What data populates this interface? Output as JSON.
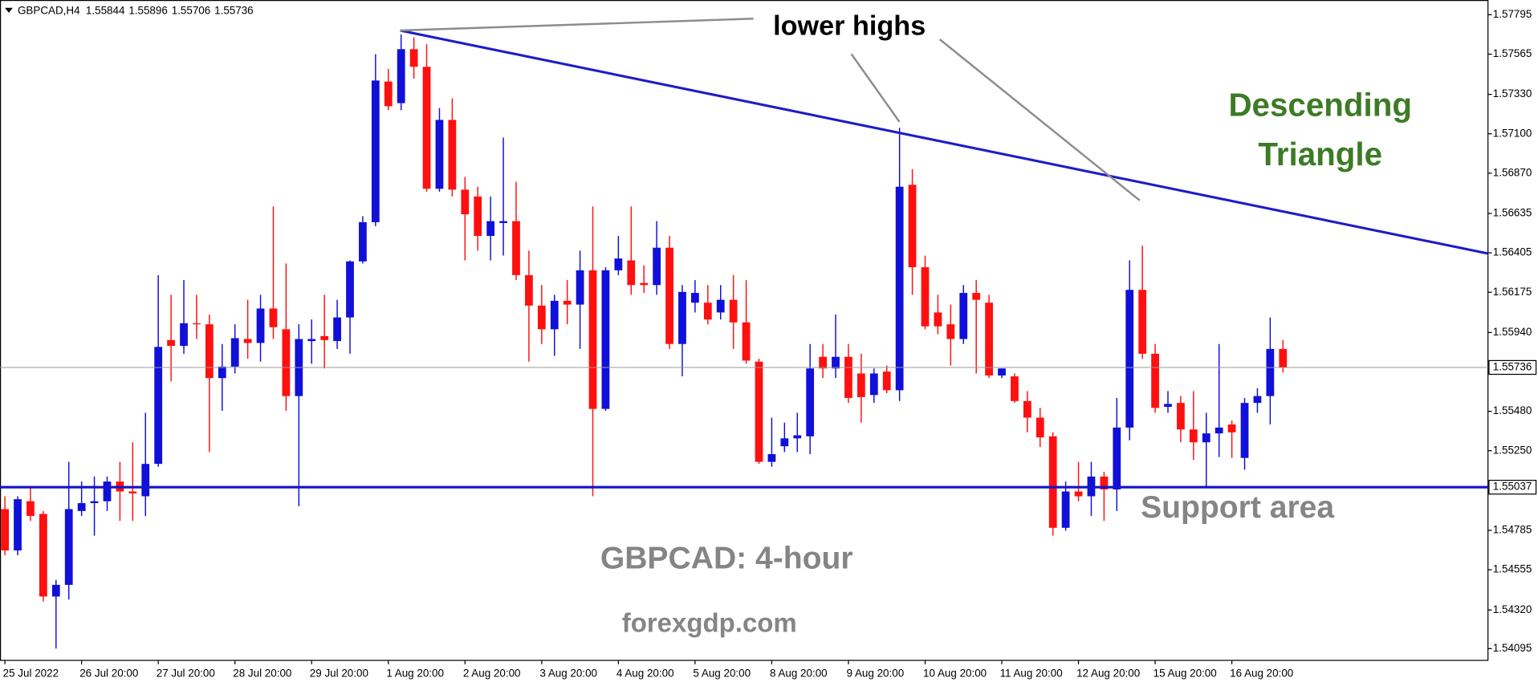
{
  "chart_data": {
    "type": "candlestick",
    "symbol": "GBPCAD,H4",
    "annotations": [
      "lower highs",
      "Descending Triangle",
      "Support area",
      "GBPCAD: 4-hour",
      "forexgdp.com"
    ],
    "up_color": "#1010d8",
    "down_color": "#ff1010",
    "support_level": 1.55037,
    "support_color": "#1414c8",
    "grid": false,
    "ylim": [
      1.54026,
      1.57881
    ],
    "yticks": [
      1.57795,
      1.57565,
      {
        "value": 1.5733,
        "label": "1.57330"
      },
      {
        "value": 1.571,
        "label": "1.57100"
      },
      {
        "value": 1.5687,
        "label": "1.56870"
      },
      1.56635,
      1.56405,
      1.56175,
      {
        "value": 1.5594,
        "label": "1.55940"
      },
      {
        "value": 1.5571,
        "label": "1.55710"
      },
      {
        "value": 1.5548,
        "label": "1.55480"
      },
      {
        "value": 1.5525,
        "label": "1.55250"
      },
      1.54785,
      1.54555,
      {
        "value": 1.5432,
        "label": "1.54320"
      },
      1.54095
    ],
    "categories": [
      "25 Jul 2022",
      null,
      null,
      null,
      null,
      null,
      "26 Jul 20:00",
      null,
      null,
      null,
      null,
      null,
      "27 Jul 20:00",
      null,
      null,
      null,
      null,
      null,
      "28 Jul 20:00",
      null,
      null,
      null,
      null,
      null,
      "29 Jul 20:00",
      null,
      null,
      null,
      null,
      null,
      "1 Aug 20:00",
      null,
      null,
      null,
      null,
      null,
      "2 Aug 20:00",
      null,
      null,
      null,
      null,
      null,
      "3 Aug 20:00",
      null,
      null,
      null,
      null,
      null,
      "4 Aug 20:00",
      null,
      null,
      null,
      null,
      null,
      "5 Aug 20:00",
      null,
      null,
      null,
      null,
      null,
      "8 Aug 20:00",
      null,
      null,
      null,
      null,
      null,
      "9 Aug 20:00",
      null,
      null,
      null,
      null,
      null,
      "10 Aug 20:00",
      null,
      null,
      null,
      null,
      null,
      "11 Aug 20:00",
      null,
      null,
      null,
      null,
      null,
      "12 Aug 20:00",
      null,
      null,
      null,
      null,
      null,
      "15 Aug 20:00",
      null,
      null,
      null,
      null,
      null,
      "16 Aug 20:00",
      null,
      null,
      null,
      null
    ],
    "open": [
      1.54909,
      1.54668,
      1.54955,
      1.54881,
      1.54399,
      1.54467,
      1.54898,
      1.54944,
      1.54955,
      1.5507,
      1.55012,
      1.54984,
      1.55173,
      1.55896,
      1.55862,
      1.55994,
      1.55988,
      1.55674,
      1.55741,
      1.55902,
      1.55879,
      1.5608,
      1.55959,
      1.55569,
      1.5589,
      1.55919,
      1.5589,
      1.56028,
      1.56355,
      1.56584,
      1.57405,
      1.57279,
      1.57594,
      1.57491,
      1.56779,
      1.57181,
      1.56774,
      1.56734,
      1.56504,
      1.56579,
      1.5659,
      1.56275,
      1.56097,
      1.55959,
      1.56125,
      1.56103,
      1.56303,
      1.55494,
      1.56303,
      1.56361,
      1.56229,
      1.56217,
      1.56435,
      1.55873,
      1.56114,
      1.56114,
      1.56057,
      1.56131,
      1.55999,
      1.5577,
      1.55185,
      1.55276,
      1.55322,
      1.55334,
      1.55798,
      1.5573,
      1.55798,
      1.55701,
      1.55575,
      1.55712,
      1.55603,
      1.56802,
      1.56321,
      1.56057,
      1.55988,
      1.55902,
      1.56171,
      1.56114,
      1.55689,
      1.55684,
      1.5554,
      1.55443,
      1.55334,
      1.548,
      1.55012,
      1.54984,
      1.55099,
      1.55024,
      1.55385,
      1.56189,
      1.55816,
      1.55506,
      1.55529,
      1.55374,
      1.55299,
      1.55351,
      1.55403,
      1.55208,
      1.55529,
      1.55569,
      1.55844
    ],
    "high": [
      1.54984,
      1.54984,
      1.55041,
      1.54898,
      1.54496,
      1.55185,
      1.5507,
      1.55099,
      1.55099,
      1.55185,
      1.55299,
      1.55471,
      1.56275,
      1.5616,
      1.56246,
      1.5616,
      1.56045,
      1.55873,
      1.55988,
      1.56131,
      1.5616,
      1.56676,
      1.56343,
      1.55988,
      1.56016,
      1.5616,
      1.56131,
      1.56361,
      1.56619,
      1.57565,
      1.57479,
      1.5768,
      1.57663,
      1.57623,
      1.5725,
      1.57307,
      1.56848,
      1.56791,
      1.56734,
      1.57078,
      1.5682,
      1.56418,
      1.56217,
      1.5616,
      1.56246,
      1.56418,
      1.56676,
      1.56321,
      1.56504,
      1.56676,
      1.56332,
      1.5659,
      1.56504,
      1.56217,
      1.56246,
      1.56217,
      1.56217,
      1.56275,
      1.56246,
      1.55787,
      1.55443,
      1.55414,
      1.55471,
      1.55873,
      1.55873,
      1.56045,
      1.55873,
      1.55816,
      1.5573,
      1.55747,
      1.57135,
      1.56894,
      1.56389,
      1.5616,
      1.56103,
      1.56217,
      1.56246,
      1.5616,
      1.5573,
      1.55701,
      1.55598,
      1.555,
      1.55357,
      1.5507,
      1.55185,
      1.55185,
      1.55127,
      1.55558,
      1.56361,
      1.56447,
      1.55873,
      1.55598,
      1.55569,
      1.55598,
      1.55471,
      1.55873,
      1.55426,
      1.55558,
      1.55615,
      1.56028,
      1.55896
    ],
    "low": [
      1.5464,
      1.5464,
      1.5484,
      1.5437,
      1.54095,
      1.54381,
      1.54869,
      1.54754,
      1.54898,
      1.5484,
      1.5484,
      1.54869,
      1.55156,
      1.55655,
      1.55816,
      1.55902,
      1.55242,
      1.55483,
      1.55701,
      1.55787,
      1.5577,
      1.55902,
      1.55483,
      1.54926,
      1.55758,
      1.5573,
      1.55844,
      1.55816,
      1.56343,
      1.56561,
      1.57238,
      1.57238,
      1.57422,
      1.56762,
      1.56762,
      1.56734,
      1.56361,
      1.56418,
      1.56361,
      1.56389,
      1.56246,
      1.5577,
      1.55873,
      1.55804,
      1.55988,
      1.55844,
      1.54984,
      1.55483,
      1.56275,
      1.5616,
      1.56171,
      1.5616,
      1.55844,
      1.55684,
      1.56057,
      1.55988,
      1.56016,
      1.55844,
      1.55758,
      1.55173,
      1.55156,
      1.55242,
      1.55242,
      1.5523,
      1.55674,
      1.55674,
      1.55529,
      1.55414,
      1.55529,
      1.55586,
      1.5554,
      1.5616,
      1.55959,
      1.5593,
      1.55747,
      1.55873,
      1.55701,
      1.55674,
      1.55674,
      1.55529,
      1.55357,
      1.55271,
      1.54754,
      1.54783,
      1.54955,
      1.54869,
      1.5484,
      1.54898,
      1.55311,
      1.55787,
      1.55471,
      1.55471,
      1.55299,
      1.55196,
      1.55041,
      1.55213,
      1.55208,
      1.55139,
      1.55471,
      1.55403,
      1.55706
    ],
    "close": [
      1.54668,
      1.54967,
      1.54869,
      1.54399,
      1.54467,
      1.54909,
      1.54944,
      1.54955,
      1.5507,
      1.55012,
      1.55001,
      1.55173,
      1.55856,
      1.55862,
      1.55994,
      1.55988,
      1.55674,
      1.55741,
      1.55907,
      1.55879,
      1.5608,
      1.55971,
      1.55569,
      1.55902,
      1.55902,
      1.55896,
      1.56028,
      1.56355,
      1.56584,
      1.57411,
      1.57261,
      1.57594,
      1.57491,
      1.56779,
      1.57181,
      1.56774,
      1.5663,
      1.56504,
      1.5659,
      1.5659,
      1.56275,
      1.56097,
      1.55959,
      1.56125,
      1.56103,
      1.56303,
      1.55494,
      1.56303,
      1.56372,
      1.56217,
      1.56217,
      1.56435,
      1.55873,
      1.56177,
      1.56171,
      1.56016,
      1.56131,
      1.55999,
      1.55776,
      1.55185,
      1.5523,
      1.55322,
      1.5534,
      1.5573,
      1.5573,
      1.55798,
      1.55558,
      1.55563,
      1.55701,
      1.55603,
      1.56791,
      1.56321,
      1.55976,
      1.55976,
      1.55902,
      1.56171,
      1.56131,
      1.55689,
      1.5573,
      1.5554,
      1.55443,
      1.55328,
      1.548,
      1.55012,
      1.54984,
      1.55099,
      1.55024,
      1.55385,
      1.56189,
      1.55816,
      1.555,
      1.55523,
      1.55374,
      1.55299,
      1.55351,
      1.55385,
      1.55357,
      1.55529,
      1.55569,
      1.55844,
      1.55736
    ]
  }
}
